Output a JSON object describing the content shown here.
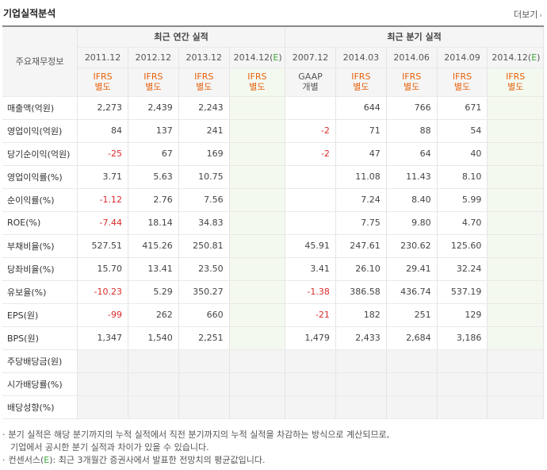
{
  "title": "기업실적분석",
  "more_label": "더보기",
  "row_header": "주요재무정보",
  "groups": {
    "annual": "최근 연간 실적",
    "quarterly": "최근 분기 실적"
  },
  "annual_periods": [
    "2011.12",
    "2012.12",
    "2013.12",
    "2014.12(E)"
  ],
  "quarter_periods": [
    "2007.12",
    "2014.03",
    "2014.06",
    "2014.09",
    "2014.12(E)"
  ],
  "annual_std": [
    [
      "IFRS",
      "별도"
    ],
    [
      "IFRS",
      "별도"
    ],
    [
      "IFRS",
      "별도"
    ],
    [
      "IFRS",
      "별도"
    ]
  ],
  "quarter_std": [
    [
      "GAAP",
      "개별"
    ],
    [
      "IFRS",
      "별도"
    ],
    [
      "IFRS",
      "별도"
    ],
    [
      "IFRS",
      "별도"
    ],
    [
      "IFRS",
      "별도"
    ]
  ],
  "rows": [
    {
      "label": "매출액(억원)",
      "annual": [
        "2,273",
        "2,439",
        "2,243",
        ""
      ],
      "quarter": [
        "",
        "644",
        "766",
        "671",
        ""
      ]
    },
    {
      "label": "영업이익(억원)",
      "annual": [
        "84",
        "137",
        "241",
        ""
      ],
      "quarter": [
        "-2",
        "71",
        "88",
        "54",
        ""
      ]
    },
    {
      "label": "당기순이익(억원)",
      "annual": [
        "-25",
        "67",
        "169",
        ""
      ],
      "quarter": [
        "-2",
        "47",
        "64",
        "40",
        ""
      ]
    },
    {
      "label": "영업이익률(%)",
      "annual": [
        "3.71",
        "5.63",
        "10.75",
        ""
      ],
      "quarter": [
        "",
        "11.08",
        "11.43",
        "8.10",
        ""
      ]
    },
    {
      "label": "순이익률(%)",
      "annual": [
        "-1.12",
        "2.76",
        "7.56",
        ""
      ],
      "quarter": [
        "",
        "7.24",
        "8.40",
        "5.99",
        ""
      ]
    },
    {
      "label": "ROE(%)",
      "annual": [
        "-7.44",
        "18.14",
        "34.83",
        ""
      ],
      "quarter": [
        "",
        "7.75",
        "9.80",
        "4.70",
        ""
      ]
    },
    {
      "label": "부채비율(%)",
      "annual": [
        "527.51",
        "415.26",
        "250.81",
        ""
      ],
      "quarter": [
        "45.91",
        "247.61",
        "230.62",
        "125.60",
        ""
      ]
    },
    {
      "label": "당좌비율(%)",
      "annual": [
        "15.70",
        "13.41",
        "23.50",
        ""
      ],
      "quarter": [
        "3.41",
        "26.10",
        "29.41",
        "32.24",
        ""
      ]
    },
    {
      "label": "유보율(%)",
      "annual": [
        "-10.23",
        "5.29",
        "350.27",
        ""
      ],
      "quarter": [
        "-1.38",
        "386.58",
        "436.74",
        "537.19",
        ""
      ]
    },
    {
      "label": "EPS(원)",
      "annual": [
        "-99",
        "262",
        "660",
        ""
      ],
      "quarter": [
        "-21",
        "182",
        "251",
        "129",
        ""
      ]
    },
    {
      "label": "BPS(원)",
      "annual": [
        "1,347",
        "1,540",
        "2,251",
        ""
      ],
      "quarter": [
        "1,479",
        "2,433",
        "2,684",
        "3,186",
        ""
      ]
    },
    {
      "label": "주당배당금(원)",
      "annual": [
        "",
        "",
        "",
        ""
      ],
      "quarter": [
        "",
        "",
        "",
        "",
        ""
      ]
    },
    {
      "label": "시가배당률(%)",
      "annual": [
        "",
        "",
        "",
        ""
      ],
      "quarter": [
        "",
        "",
        "",
        "",
        ""
      ]
    },
    {
      "label": "배당성향(%)",
      "annual": [
        "",
        "",
        "",
        ""
      ],
      "quarter": [
        "",
        "",
        "",
        "",
        ""
      ]
    }
  ],
  "notes": {
    "note1_line1": "분기 실적은 해당 분기까지의 누적 실적에서 직전 분기까지의 누적 실적을 차감하는 방식으로 계산되므로,",
    "note1_line2": "기업에서 공시한 분기 실적과 차이가 있을 수 있습니다.",
    "note2_prefix": "컨센서스(",
    "note2_e": "E",
    "note2_suffix": "): 최근 3개월간 증권사에서 발표한 전망치의 평균값입니다."
  },
  "colors": {
    "ifrs": "#e8620c",
    "negative": "#d92b2b",
    "estimate": "#3aa83a"
  }
}
